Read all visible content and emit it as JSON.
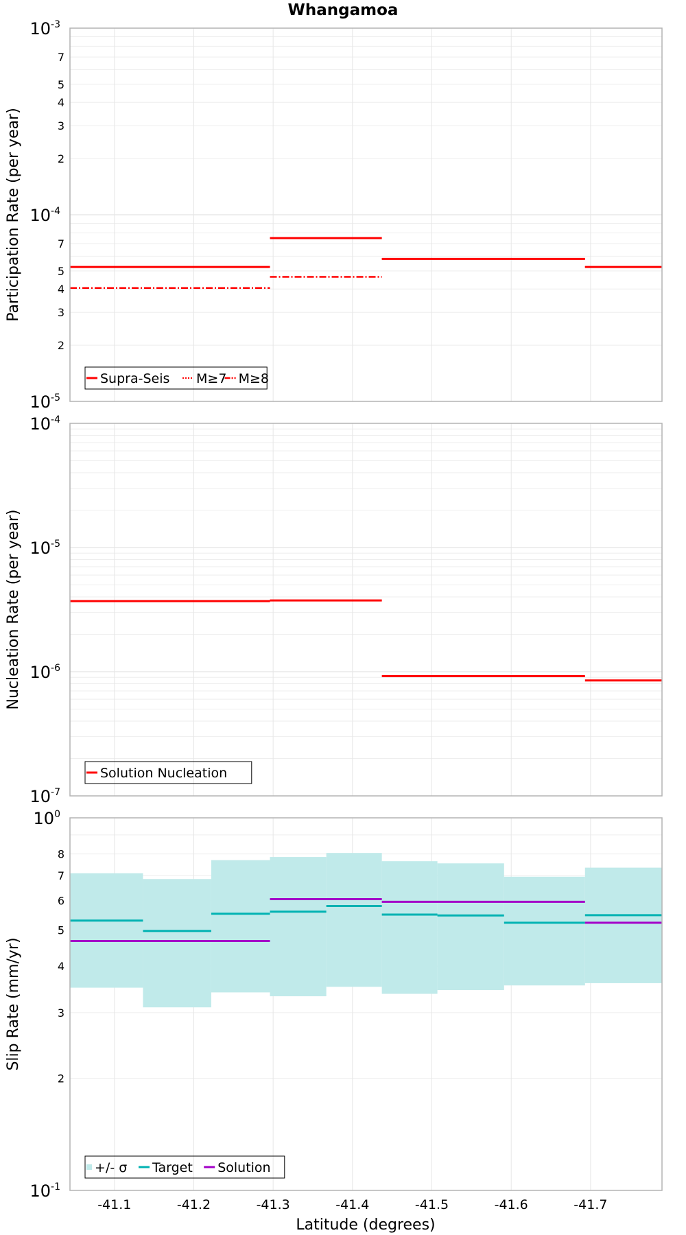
{
  "title": "Whangamoa",
  "chart_data": [
    {
      "type": "line",
      "ylabel": "Participation Rate (per year)",
      "yscale": "log",
      "ylim": [
        1e-05,
        0.001
      ],
      "xlim": [
        -41.044,
        -41.79
      ],
      "grid": true,
      "legend": "bottom-left",
      "series": [
        {
          "name": "Supra-Seis",
          "style": "solid",
          "color": "#ff0000",
          "segments": [
            [
              -41.044,
              -41.296,
              5.25e-05
            ],
            [
              -41.296,
              -41.437,
              7.5e-05
            ],
            [
              -41.437,
              -41.693,
              5.8e-05
            ],
            [
              -41.693,
              -41.79,
              5.25e-05
            ]
          ]
        },
        {
          "name": "M≥7",
          "style": "dotted",
          "color": "#ff0000",
          "segments": [
            [
              -41.044,
              -41.296,
              5.25e-05
            ],
            [
              -41.296,
              -41.437,
              7.5e-05
            ],
            [
              -41.437,
              -41.693,
              5.8e-05
            ],
            [
              -41.693,
              -41.79,
              5.25e-05
            ]
          ]
        },
        {
          "name": "M≥8",
          "style": "dashdot",
          "color": "#ff0000",
          "segments": [
            [
              -41.044,
              -41.296,
              4.05e-05
            ],
            [
              -41.296,
              -41.437,
              4.65e-05
            ]
          ]
        }
      ]
    },
    {
      "type": "line",
      "ylabel": "Nucleation Rate (per year)",
      "yscale": "log",
      "ylim": [
        1e-07,
        0.0001
      ],
      "xlim": [
        -41.044,
        -41.79
      ],
      "grid": true,
      "legend": "bottom-left",
      "series": [
        {
          "name": "Solution Nucleation",
          "style": "solid",
          "color": "#ff0000",
          "segments": [
            [
              -41.044,
              -41.296,
              3.7e-06
            ],
            [
              -41.296,
              -41.437,
              3.75e-06
            ],
            [
              -41.437,
              -41.693,
              9.2e-07
            ],
            [
              -41.693,
              -41.79,
              8.5e-07
            ]
          ]
        }
      ]
    },
    {
      "type": "area",
      "ylabel": "Slip Rate (mm/yr)",
      "xlabel": "Latitude (degrees)",
      "yscale": "log",
      "ylim": [
        0.1,
        1
      ],
      "xlim": [
        -41.044,
        -41.79
      ],
      "grid": true,
      "legend": "bottom-left",
      "series": [
        {
          "name": "+/- σ",
          "color": "#c0eaea",
          "bands": [
            [
              -41.044,
              -41.136,
              0.35,
              0.71
            ],
            [
              -41.136,
              -41.222,
              0.31,
              0.685
            ],
            [
              -41.222,
              -41.296,
              0.34,
              0.77
            ],
            [
              -41.296,
              -41.367,
              0.332,
              0.785
            ],
            [
              -41.367,
              -41.437,
              0.352,
              0.805
            ],
            [
              -41.437,
              -41.507,
              0.337,
              0.765
            ],
            [
              -41.507,
              -41.591,
              0.345,
              0.755
            ],
            [
              -41.591,
              -41.693,
              0.355,
              0.695
            ],
            [
              -41.693,
              -41.79,
              0.36,
              0.735
            ]
          ]
        },
        {
          "name": "Target",
          "color": "#00b2b2",
          "segments": [
            [
              -41.044,
              -41.136,
              0.53
            ],
            [
              -41.136,
              -41.222,
              0.497
            ],
            [
              -41.222,
              -41.296,
              0.553
            ],
            [
              -41.296,
              -41.367,
              0.56
            ],
            [
              -41.367,
              -41.437,
              0.58
            ],
            [
              -41.437,
              -41.507,
              0.55
            ],
            [
              -41.507,
              -41.591,
              0.547
            ],
            [
              -41.591,
              -41.693,
              0.523
            ],
            [
              -41.693,
              -41.79,
              0.548
            ]
          ]
        },
        {
          "name": "Solution",
          "color": "#a300c8",
          "segments": [
            [
              -41.044,
              -41.296,
              0.467
            ],
            [
              -41.296,
              -41.437,
              0.605
            ],
            [
              -41.437,
              -41.693,
              0.595
            ],
            [
              -41.693,
              -41.79,
              0.523
            ]
          ]
        }
      ],
      "xticks": [
        "-41.1",
        "-41.2",
        "-41.3",
        "-41.4",
        "-41.5",
        "-41.6",
        "-41.7"
      ]
    }
  ],
  "y_major_ticks": [
    [
      {
        "base": "10",
        "exp": "-3"
      },
      {
        "base": "10",
        "exp": "-4"
      },
      {
        "base": "10",
        "exp": "-5"
      }
    ],
    [
      {
        "base": "10",
        "exp": "-4"
      },
      {
        "base": "10",
        "exp": "-5"
      },
      {
        "base": "10",
        "exp": "-6"
      },
      {
        "base": "10",
        "exp": "-7"
      }
    ],
    [
      {
        "base": "10",
        "exp": "0"
      },
      {
        "base": "10",
        "exp": "-1"
      }
    ]
  ],
  "y_minor_labels": [
    [
      "2",
      "3",
      "4",
      "5",
      "7"
    ],
    [],
    [
      "2",
      "3",
      "4",
      "5",
      "6",
      "7",
      "8"
    ]
  ]
}
